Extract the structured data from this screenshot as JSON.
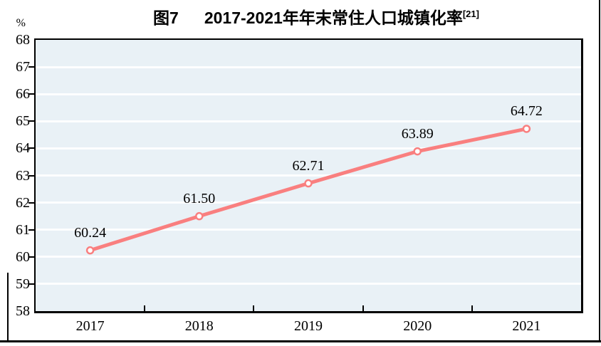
{
  "title": {
    "prefix": "图7",
    "main": "2017-2021年年末常住人口城镇化率",
    "superscript": "[21]"
  },
  "y_axis_unit": "%",
  "chart_data": {
    "type": "line",
    "title": "图7 2017-2021年年末常住人口城镇化率[21]",
    "categories": [
      "2017",
      "2018",
      "2019",
      "2020",
      "2021"
    ],
    "values": [
      60.24,
      61.5,
      62.71,
      63.89,
      64.72
    ],
    "data_labels": [
      "60.24",
      "61.50",
      "62.71",
      "63.89",
      "64.72"
    ],
    "series_name": "年末常住人口城镇化率",
    "xlabel": "",
    "ylabel": "%",
    "ylim": [
      58,
      68
    ],
    "yticks": [
      68,
      67,
      66,
      65,
      64,
      63,
      62,
      61,
      60,
      59,
      58
    ],
    "grid": true,
    "legend_position": "none",
    "line_color": "#f97f7f",
    "marker_fill": "#ffffff",
    "plot_bg": "#e9f1f6",
    "gridline_color": "#fdfeff",
    "axis_color": "#000000"
  }
}
